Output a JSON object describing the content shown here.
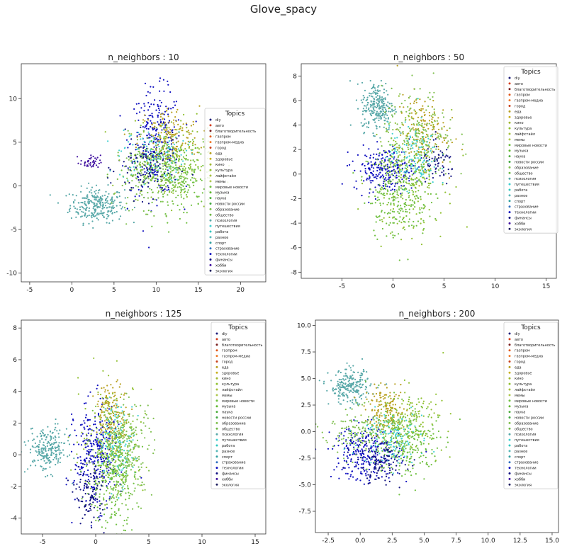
{
  "figure": {
    "suptitle": "Glove_spacy",
    "legend_title": "Topics",
    "topics": [
      "diy",
      "авто",
      "благотворительность",
      "газпром",
      "газпром-медиа",
      "город",
      "еда",
      "здоровье",
      "кино",
      "культура",
      "лайфстайл",
      "мемы",
      "мировые новости",
      "музыка",
      "наука",
      "новости россии",
      "образование",
      "общество",
      "психология",
      "путешествия",
      "работа",
      "разное",
      "спорт",
      "страхование",
      "технологии",
      "финансы",
      "хобби",
      "экология"
    ],
    "topic_colors": [
      "#1f1f7a",
      "#d43d1a",
      "#7a1f1f",
      "#e0581a",
      "#f07a2a",
      "#c8401a",
      "#b8a020",
      "#c8b020",
      "#a0b830",
      "#90c030",
      "#a8c040",
      "#b0c850",
      "#70c040",
      "#60b830",
      "#50b040",
      "#40a840",
      "#80c050",
      "#70b848",
      "#58a8a8",
      "#40d0d0",
      "#30c8c0",
      "#58b8b8",
      "#30a0a0",
      "#3070c0",
      "#1010c0",
      "#101080",
      "#4010a0",
      "#202060"
    ]
  },
  "chart_data": [
    {
      "type": "scatter",
      "title": "n_neighbors : 10",
      "xlim": [
        -6,
        23
      ],
      "ylim": [
        -11,
        14
      ],
      "xticks": [
        -5,
        0,
        5,
        10,
        15,
        20
      ],
      "yticks": [
        -10,
        -5,
        0,
        5,
        10
      ],
      "legend": "right",
      "clusters": [
        {
          "topic": "психология",
          "cx": 3.0,
          "cy": -2.2,
          "sx": 1.6,
          "sy": 1.0,
          "n": 260
        },
        {
          "topic": "технологии",
          "cx": 10.0,
          "cy": 5.0,
          "sx": 1.5,
          "sy": 3.0,
          "n": 280
        },
        {
          "topic": "еда",
          "cx": 11.5,
          "cy": 5.5,
          "sx": 1.8,
          "sy": 1.8,
          "n": 160
        },
        {
          "topic": "путешествия",
          "cx": 9.5,
          "cy": 3.5,
          "sx": 2.0,
          "sy": 1.5,
          "n": 130
        },
        {
          "topic": "мировые новости",
          "cx": 12.5,
          "cy": 1.0,
          "sx": 2.2,
          "sy": 2.0,
          "n": 260
        },
        {
          "topic": "образование",
          "cx": 9.0,
          "cy": 1.5,
          "sx": 2.0,
          "sy": 2.0,
          "n": 180
        },
        {
          "topic": "финансы",
          "cx": 9.0,
          "cy": 2.0,
          "sx": 1.8,
          "sy": 1.8,
          "n": 120
        },
        {
          "topic": "культура",
          "cx": 11.5,
          "cy": 3.0,
          "sx": 2.5,
          "sy": 2.5,
          "n": 160
        },
        {
          "topic": "хобби",
          "cx": 2.2,
          "cy": 2.7,
          "sx": 0.6,
          "sy": 0.4,
          "n": 40
        }
      ]
    },
    {
      "type": "scatter",
      "title": "n_neighbors : 50",
      "xlim": [
        -9,
        16
      ],
      "ylim": [
        -8.5,
        9
      ],
      "xticks": [
        -5,
        0,
        5,
        10,
        15
      ],
      "yticks": [
        -8,
        -6,
        -4,
        -2,
        0,
        2,
        4,
        6,
        8
      ],
      "legend": "top-right",
      "clusters": [
        {
          "topic": "психология",
          "cx": -1.5,
          "cy": 5.5,
          "sx": 0.8,
          "sy": 1.0,
          "n": 240
        },
        {
          "topic": "технологии",
          "cx": -0.8,
          "cy": 0.4,
          "sx": 1.5,
          "sy": 0.9,
          "n": 240
        },
        {
          "topic": "еда",
          "cx": 2.8,
          "cy": 3.5,
          "sx": 1.2,
          "sy": 1.5,
          "n": 160
        },
        {
          "topic": "путешествия",
          "cx": 2.0,
          "cy": 1.5,
          "sx": 1.2,
          "sy": 1.3,
          "n": 140
        },
        {
          "topic": "мировые новости",
          "cx": 0.5,
          "cy": -1.5,
          "sx": 1.5,
          "sy": 1.8,
          "n": 260
        },
        {
          "topic": "образование",
          "cx": 2.5,
          "cy": 2.8,
          "sx": 1.8,
          "sy": 2.0,
          "n": 200
        },
        {
          "topic": "финансы",
          "cx": 4.5,
          "cy": 0.8,
          "sx": 0.8,
          "sy": 0.8,
          "n": 60
        },
        {
          "topic": "культура",
          "cx": 1.5,
          "cy": 0.0,
          "sx": 1.8,
          "sy": 2.5,
          "n": 180
        }
      ]
    },
    {
      "type": "scatter",
      "title": "n_neighbors : 125",
      "xlim": [
        -7,
        16
      ],
      "ylim": [
        -5,
        8.5
      ],
      "xticks": [
        -5,
        0,
        5,
        10,
        15
      ],
      "yticks": [
        -4,
        -2,
        0,
        2,
        4,
        6,
        8
      ],
      "legend": "top-right",
      "clusters": [
        {
          "topic": "психология",
          "cx": -4.5,
          "cy": 0.3,
          "sx": 0.9,
          "sy": 0.7,
          "n": 220
        },
        {
          "topic": "технологии",
          "cx": 0.0,
          "cy": 0.0,
          "sx": 1.0,
          "sy": 1.6,
          "n": 300
        },
        {
          "topic": "еда",
          "cx": 1.5,
          "cy": 2.5,
          "sx": 0.8,
          "sy": 1.0,
          "n": 160
        },
        {
          "topic": "путешествия",
          "cx": 2.0,
          "cy": 0.8,
          "sx": 0.8,
          "sy": 1.2,
          "n": 140
        },
        {
          "topic": "мировые новости",
          "cx": 1.5,
          "cy": -1.5,
          "sx": 1.2,
          "sy": 1.5,
          "n": 280
        },
        {
          "topic": "образование",
          "cx": 3.0,
          "cy": 0.5,
          "sx": 1.2,
          "sy": 1.5,
          "n": 200
        },
        {
          "topic": "культура",
          "cx": 1.5,
          "cy": 1.0,
          "sx": 1.5,
          "sy": 1.8,
          "n": 160
        },
        {
          "topic": "финансы",
          "cx": -0.5,
          "cy": -2.5,
          "sx": 0.7,
          "sy": 1.0,
          "n": 100
        }
      ]
    },
    {
      "type": "scatter",
      "title": "n_neighbors : 200",
      "xlim": [
        -3.5,
        15.5
      ],
      "ylim": [
        -9.5,
        10.5
      ],
      "xticks": [
        -2.5,
        0.0,
        2.5,
        5.0,
        7.5,
        10.0,
        12.5,
        15.0
      ],
      "yticks": [
        -7.5,
        -5.0,
        -2.5,
        0.0,
        2.5,
        5.0,
        7.5,
        10.0
      ],
      "legend": "top-right",
      "clusters": [
        {
          "topic": "психология",
          "cx": -0.8,
          "cy": 4.2,
          "sx": 0.8,
          "sy": 0.8,
          "n": 220
        },
        {
          "topic": "технологии",
          "cx": 0.5,
          "cy": -2.0,
          "sx": 1.3,
          "sy": 1.3,
          "n": 280
        },
        {
          "topic": "еда",
          "cx": 2.0,
          "cy": 2.0,
          "sx": 0.8,
          "sy": 1.0,
          "n": 150
        },
        {
          "topic": "путешествия",
          "cx": 2.5,
          "cy": -0.5,
          "sx": 1.2,
          "sy": 1.2,
          "n": 160
        },
        {
          "topic": "мировые новости",
          "cx": 3.5,
          "cy": -1.0,
          "sx": 1.3,
          "sy": 1.8,
          "n": 240
        },
        {
          "topic": "образование",
          "cx": 0.0,
          "cy": 0.0,
          "sx": 1.5,
          "sy": 1.2,
          "n": 160
        },
        {
          "topic": "культура",
          "cx": 4.0,
          "cy": 1.0,
          "sx": 1.3,
          "sy": 1.5,
          "n": 140
        },
        {
          "topic": "финансы",
          "cx": 1.5,
          "cy": -3.0,
          "sx": 1.0,
          "sy": 1.0,
          "n": 100
        }
      ]
    }
  ]
}
